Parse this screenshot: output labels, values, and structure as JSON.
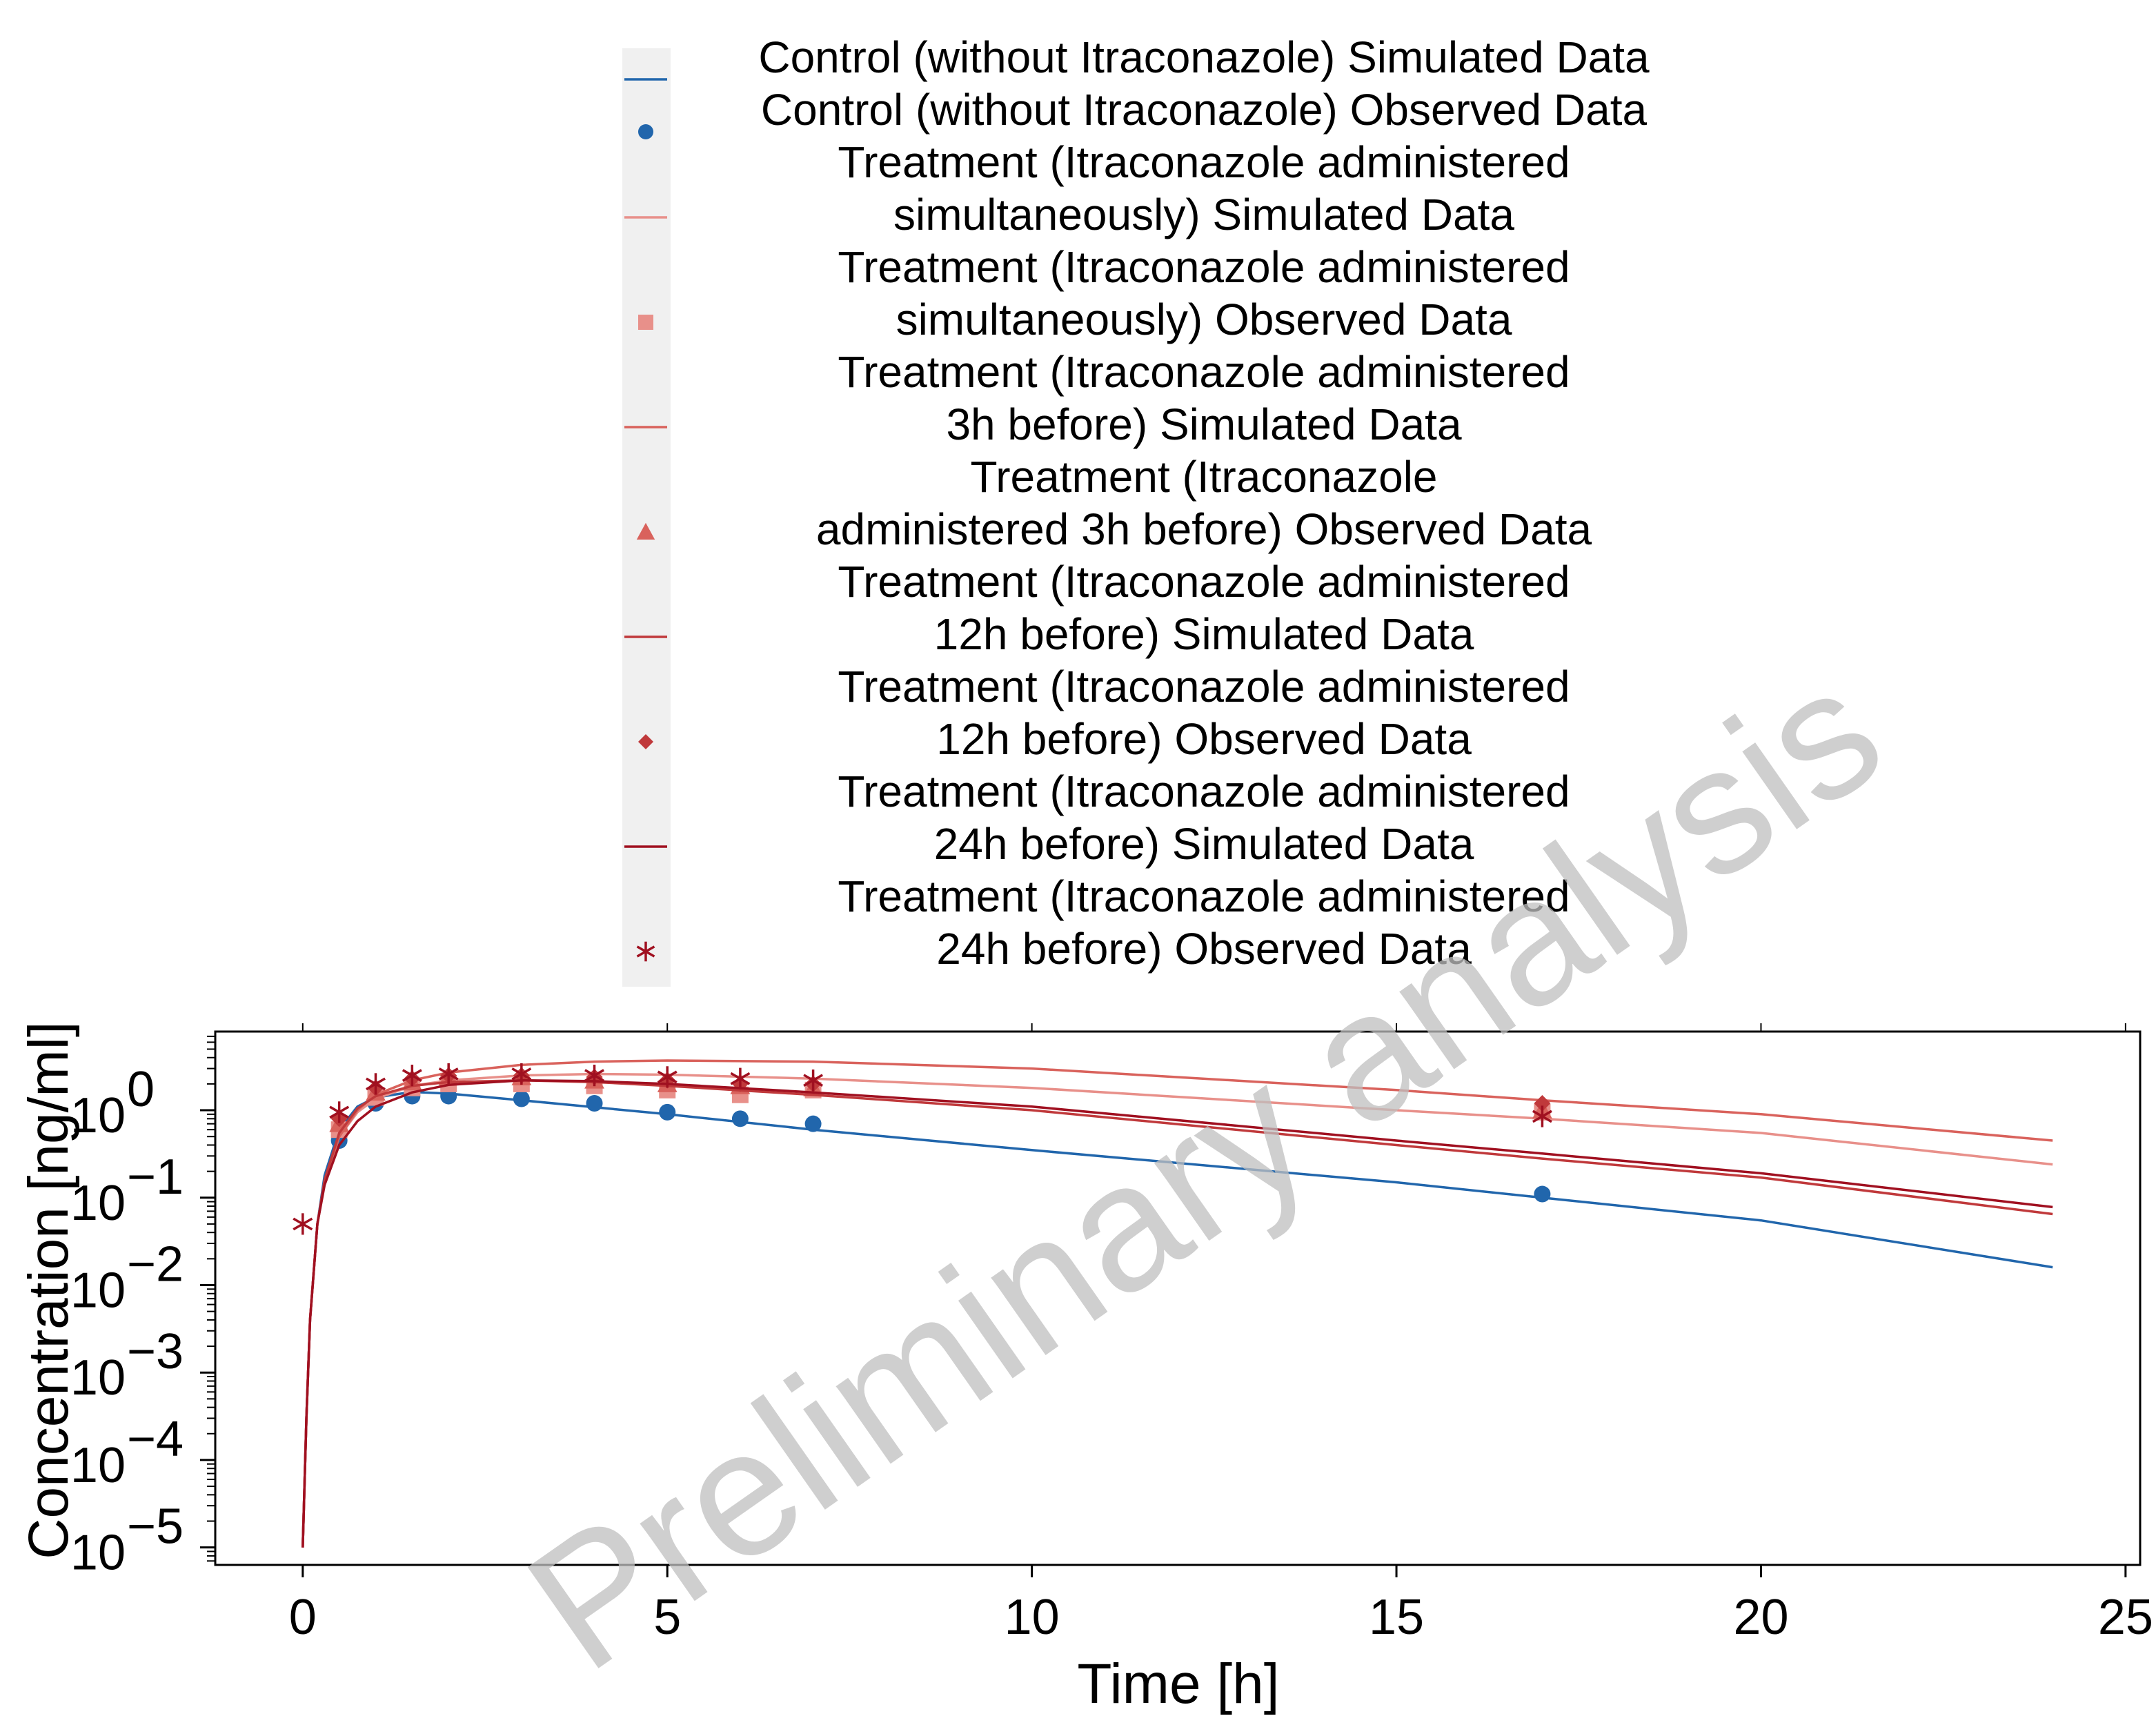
{
  "chart_data": {
    "type": "line",
    "xlabel": "Time [h]",
    "ylabel": "Concentration [ng/ml]",
    "watermark": "Preliminary analysis",
    "xlim": [
      -1.2,
      25.2
    ],
    "ylim_log10": [
      -5.2,
      0.9
    ],
    "yscale": "log",
    "x_ticks": [
      0,
      5,
      10,
      15,
      20,
      25
    ],
    "y_ticks": [
      {
        "exp": 0,
        "label": "10",
        "sup": "0"
      },
      {
        "exp": -1,
        "label": "10",
        "sup": "−1"
      },
      {
        "exp": -2,
        "label": "10",
        "sup": "−2"
      },
      {
        "exp": -3,
        "label": "10",
        "sup": "−3"
      },
      {
        "exp": -4,
        "label": "10",
        "sup": "−4"
      },
      {
        "exp": -5,
        "label": "10",
        "sup": "−5"
      }
    ],
    "legend_placement": "top",
    "series": [
      {
        "name": "Control (without Itraconazole) Simulated Data",
        "kind": "line",
        "color": "#2166ac",
        "x": [
          0,
          0.05,
          0.1,
          0.2,
          0.3,
          0.5,
          0.75,
          1,
          1.5,
          2,
          3,
          5,
          7,
          10,
          15,
          17,
          20,
          24
        ],
        "y": [
          1e-05,
          0.0003,
          0.004,
          0.05,
          0.18,
          0.6,
          1.1,
          1.4,
          1.62,
          1.55,
          1.3,
          0.9,
          0.6,
          0.35,
          0.15,
          0.1,
          0.055,
          0.016
        ]
      },
      {
        "name": "Control (without Itraconazole) Observed Data",
        "kind": "points",
        "marker": "circle",
        "color": "#2166ac",
        "x": [
          0.5,
          1,
          1.5,
          2,
          3,
          4,
          5,
          6,
          7,
          17
        ],
        "y": [
          0.45,
          1.2,
          1.45,
          1.45,
          1.35,
          1.2,
          0.95,
          0.8,
          0.7,
          0.11
        ]
      },
      {
        "name": "Treatment (Itraconazole administered simultaneously) Simulated Data",
        "kind": "line",
        "color": "#e8908a",
        "x": [
          0,
          0.05,
          0.1,
          0.2,
          0.3,
          0.5,
          0.75,
          1,
          1.5,
          2,
          3,
          4,
          5,
          7,
          10,
          15,
          17,
          20,
          24
        ],
        "y": [
          1e-05,
          0.0003,
          0.004,
          0.05,
          0.15,
          0.5,
          0.95,
          1.35,
          1.9,
          2.2,
          2.5,
          2.6,
          2.55,
          2.3,
          1.8,
          1.0,
          0.8,
          0.55,
          0.24
        ]
      },
      {
        "name": "Treatment (Itraconazole administered simultaneously) Observed Data",
        "kind": "points",
        "marker": "square",
        "color": "#e8908a",
        "x": [
          0.5,
          1,
          1.5,
          2,
          3,
          4,
          5,
          6,
          7,
          17
        ],
        "y": [
          0.6,
          1.4,
          1.8,
          2.0,
          2.0,
          1.9,
          1.7,
          1.5,
          1.7,
          0.95
        ]
      },
      {
        "name": "Treatment (Itraconazole administered 3h before) Simulated Data",
        "kind": "line",
        "color": "#d9625c",
        "x": [
          0,
          0.05,
          0.1,
          0.2,
          0.3,
          0.5,
          0.75,
          1,
          1.5,
          2,
          3,
          4,
          5,
          7,
          10,
          15,
          17,
          20,
          24
        ],
        "y": [
          1e-05,
          0.0003,
          0.004,
          0.05,
          0.15,
          0.5,
          1.0,
          1.5,
          2.2,
          2.7,
          3.3,
          3.6,
          3.7,
          3.6,
          3.0,
          1.7,
          1.3,
          0.9,
          0.45
        ]
      },
      {
        "name": "Treatment (Itraconazole administered 3h before) Observed Data",
        "kind": "points",
        "marker": "triangle",
        "color": "#d9625c",
        "x": [
          0.5,
          1,
          1.5,
          2,
          3,
          4,
          5,
          6,
          7,
          17
        ],
        "y": [
          0.7,
          1.6,
          2.1,
          2.4,
          2.4,
          2.2,
          2.0,
          1.9,
          1.8,
          1.0
        ]
      },
      {
        "name": "Treatment (Itraconazole administered 12h before) Simulated Data",
        "kind": "line",
        "color": "#c0393b",
        "x": [
          0,
          0.05,
          0.1,
          0.2,
          0.3,
          0.5,
          0.75,
          1,
          1.5,
          2,
          3,
          4,
          5,
          7,
          10,
          15,
          17,
          20,
          24
        ],
        "y": [
          1e-05,
          0.0003,
          0.004,
          0.05,
          0.16,
          0.55,
          1.05,
          1.45,
          1.9,
          2.1,
          2.2,
          2.1,
          1.9,
          1.5,
          1.0,
          0.4,
          0.28,
          0.17,
          0.065
        ]
      },
      {
        "name": "Treatment (Itraconazole administered 12h before) Observed Data",
        "kind": "points",
        "marker": "diamond",
        "color": "#c0393b",
        "x": [
          0.5,
          1,
          1.5,
          2,
          3,
          4,
          5,
          6,
          7,
          17
        ],
        "y": [
          0.8,
          1.8,
          2.3,
          2.5,
          2.5,
          2.4,
          2.2,
          2.0,
          2.0,
          1.2
        ]
      },
      {
        "name": "Treatment (Itraconazole administered 24h before) Simulated Data",
        "kind": "line",
        "color": "#a01020",
        "x": [
          0,
          0.05,
          0.1,
          0.2,
          0.3,
          0.5,
          0.75,
          1,
          1.5,
          2,
          3,
          4,
          5,
          7,
          10,
          15,
          17,
          20,
          24
        ],
        "y": [
          1e-05,
          0.0003,
          0.004,
          0.05,
          0.14,
          0.4,
          0.75,
          1.1,
          1.6,
          1.95,
          2.2,
          2.15,
          2.0,
          1.6,
          1.1,
          0.45,
          0.32,
          0.19,
          0.078
        ]
      },
      {
        "name": "Treatment (Itraconazole administered 24h before) Observed Data",
        "kind": "points",
        "marker": "star",
        "color": "#a01020",
        "x": [
          0,
          0.5,
          1,
          1.5,
          2,
          3,
          4,
          5,
          6,
          7,
          17
        ],
        "y": [
          0.05,
          0.95,
          2.0,
          2.5,
          2.6,
          2.6,
          2.5,
          2.4,
          2.3,
          2.2,
          0.85
        ]
      }
    ],
    "legend_lines": [
      [
        "Control (without Itraconazole) Simulated Data"
      ],
      [
        "Control (without Itraconazole) Observed Data"
      ],
      [
        "Treatment (Itraconazole administered",
        "simultaneously) Simulated Data"
      ],
      [
        "Treatment (Itraconazole administered",
        "simultaneously) Observed Data"
      ],
      [
        "Treatment (Itraconazole administered",
        "3h before) Simulated Data"
      ],
      [
        "Treatment (Itraconazole",
        "administered 3h before) Observed Data"
      ],
      [
        "Treatment (Itraconazole administered",
        "12h before) Simulated Data"
      ],
      [
        "Treatment (Itraconazole administered",
        "12h before) Observed Data"
      ],
      [
        "Treatment (Itraconazole administered",
        "24h before) Simulated Data"
      ],
      [
        "Treatment (Itraconazole administered",
        "24h before) Observed Data"
      ]
    ]
  }
}
